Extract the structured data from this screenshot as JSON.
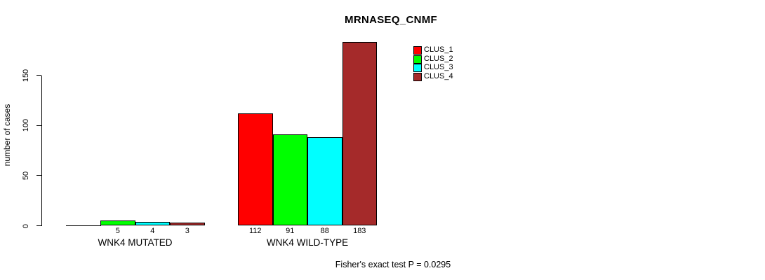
{
  "chart_data": {
    "type": "bar",
    "title": "MRNASEQ_CNMF",
    "ylabel": "number of cases",
    "xlabel": "",
    "categories": [
      "WNK4 MUTATED",
      "WNK4 WILD-TYPE"
    ],
    "series": [
      {
        "name": "CLUS_1",
        "color": "#ff0000",
        "values": [
          0,
          112
        ]
      },
      {
        "name": "CLUS_2",
        "color": "#00ff00",
        "values": [
          5,
          91
        ]
      },
      {
        "name": "CLUS_3",
        "color": "#00ffff",
        "values": [
          4,
          88
        ]
      },
      {
        "name": "CLUS_4",
        "color": "#a52a2a",
        "values": [
          3,
          183
        ]
      }
    ],
    "bar_value_labels": [
      [
        "",
        "5",
        "4",
        "3"
      ],
      [
        "112",
        "91",
        "88",
        "183"
      ]
    ],
    "yticks": [
      0,
      50,
      100,
      150
    ],
    "ylim": [
      0,
      190
    ],
    "grid": false,
    "legend_position": "topright",
    "annotation": "Fisher's exact test P = 0.0295"
  }
}
